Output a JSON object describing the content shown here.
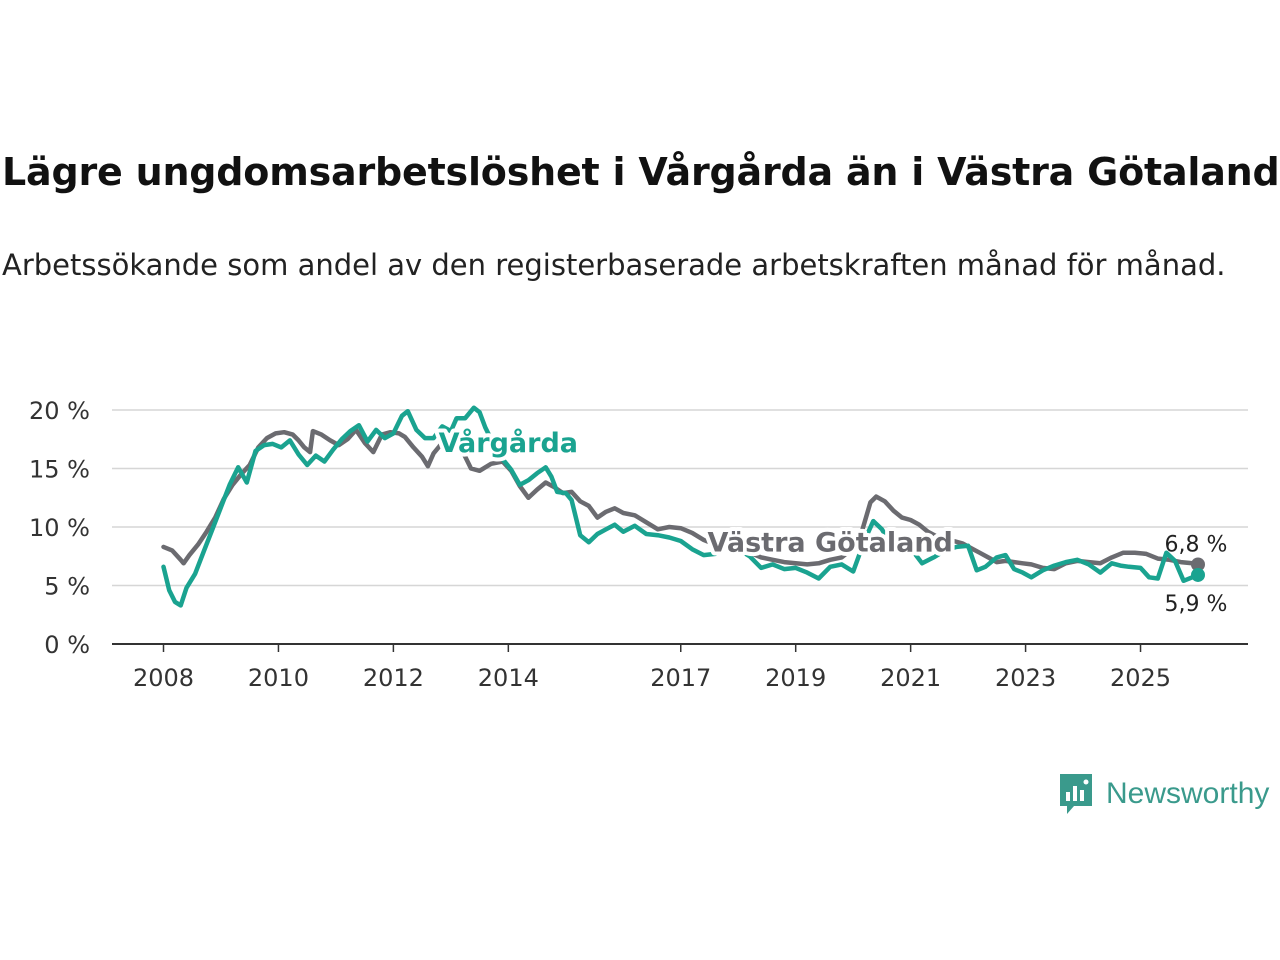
{
  "title": "Lägre ungdomsarbetslöshet i Vårgårda än i Västra Götaland",
  "subtitle": "Arbetssökande som andel av den registerbaserade arbetskraften månad för månad.",
  "brand": {
    "name": "Newsworthy",
    "icon": "newsworthy-logo-icon",
    "color": "#3a9a8c"
  },
  "chart_data": {
    "type": "line",
    "title": "Lägre ungdomsarbetslöshet i Vårgårda än i Västra Götaland",
    "xlabel": "",
    "ylabel": "",
    "xlim": [
      2008,
      2026.3
    ],
    "ylim": [
      0,
      20
    ],
    "yticks": [
      0,
      5,
      10,
      15,
      20
    ],
    "ytick_labels": [
      "0 %",
      "5 %",
      "10 %",
      "15 %",
      "20 %"
    ],
    "xticks": [
      2008,
      2010,
      2012,
      2014,
      2017,
      2019,
      2021,
      2023,
      2025
    ],
    "xtick_labels": [
      "2008",
      "2010",
      "2012",
      "2014",
      "2017",
      "2019",
      "2021",
      "2023",
      "2025"
    ],
    "grid": true,
    "series": [
      {
        "name": "Västra Götaland",
        "color": "#6b6b70",
        "end_label": "6,8 %",
        "points": [
          [
            2008.0,
            8.3
          ],
          [
            2008.15,
            8.0
          ],
          [
            2008.3,
            7.2
          ],
          [
            2008.35,
            6.9
          ],
          [
            2008.45,
            7.6
          ],
          [
            2008.6,
            8.5
          ],
          [
            2008.75,
            9.6
          ],
          [
            2008.9,
            10.8
          ],
          [
            2009.05,
            12.4
          ],
          [
            2009.2,
            13.6
          ],
          [
            2009.35,
            14.5
          ],
          [
            2009.5,
            15.3
          ],
          [
            2009.65,
            16.8
          ],
          [
            2009.8,
            17.6
          ],
          [
            2009.95,
            18.0
          ],
          [
            2010.1,
            18.1
          ],
          [
            2010.25,
            17.9
          ],
          [
            2010.35,
            17.4
          ],
          [
            2010.45,
            16.8
          ],
          [
            2010.55,
            16.4
          ],
          [
            2010.6,
            18.2
          ],
          [
            2010.75,
            17.9
          ],
          [
            2010.9,
            17.4
          ],
          [
            2011.05,
            17.0
          ],
          [
            2011.2,
            17.5
          ],
          [
            2011.35,
            18.3
          ],
          [
            2011.5,
            17.2
          ],
          [
            2011.65,
            16.4
          ],
          [
            2011.8,
            17.9
          ],
          [
            2011.95,
            18.1
          ],
          [
            2012.1,
            18.0
          ],
          [
            2012.2,
            17.7
          ],
          [
            2012.35,
            16.8
          ],
          [
            2012.5,
            16.0
          ],
          [
            2012.6,
            15.2
          ],
          [
            2012.7,
            16.3
          ],
          [
            2012.8,
            16.9
          ],
          [
            2012.9,
            17.6
          ],
          [
            2013.0,
            17.5
          ],
          [
            2013.2,
            16.5
          ],
          [
            2013.35,
            15.0
          ],
          [
            2013.5,
            14.8
          ],
          [
            2013.7,
            15.4
          ],
          [
            2013.9,
            15.6
          ],
          [
            2014.05,
            14.8
          ],
          [
            2014.2,
            13.5
          ],
          [
            2014.35,
            12.5
          ],
          [
            2014.5,
            13.2
          ],
          [
            2014.65,
            13.8
          ],
          [
            2014.8,
            13.4
          ],
          [
            2014.95,
            12.9
          ],
          [
            2015.1,
            13.0
          ],
          [
            2015.25,
            12.2
          ],
          [
            2015.4,
            11.8
          ],
          [
            2015.55,
            10.8
          ],
          [
            2015.7,
            11.3
          ],
          [
            2015.85,
            11.6
          ],
          [
            2016.0,
            11.2
          ],
          [
            2016.2,
            11.0
          ],
          [
            2016.4,
            10.4
          ],
          [
            2016.6,
            9.8
          ],
          [
            2016.8,
            10.0
          ],
          [
            2017.0,
            9.9
          ],
          [
            2017.2,
            9.5
          ],
          [
            2017.4,
            8.9
          ],
          [
            2017.6,
            8.5
          ],
          [
            2017.8,
            8.3
          ],
          [
            2018.0,
            8.0
          ],
          [
            2018.2,
            7.8
          ],
          [
            2018.4,
            7.4
          ],
          [
            2018.6,
            7.2
          ],
          [
            2018.8,
            7.0
          ],
          [
            2019.0,
            6.9
          ],
          [
            2019.2,
            6.8
          ],
          [
            2019.4,
            6.9
          ],
          [
            2019.6,
            7.2
          ],
          [
            2019.8,
            7.4
          ],
          [
            2020.0,
            8.2
          ],
          [
            2020.15,
            9.6
          ],
          [
            2020.3,
            12.1
          ],
          [
            2020.4,
            12.6
          ],
          [
            2020.55,
            12.2
          ],
          [
            2020.7,
            11.4
          ],
          [
            2020.85,
            10.8
          ],
          [
            2021.0,
            10.6
          ],
          [
            2021.15,
            10.2
          ],
          [
            2021.3,
            9.6
          ],
          [
            2021.45,
            9.2
          ],
          [
            2021.6,
            9.0
          ],
          [
            2021.75,
            8.8
          ],
          [
            2021.9,
            8.6
          ],
          [
            2022.05,
            8.2
          ],
          [
            2022.2,
            7.8
          ],
          [
            2022.35,
            7.4
          ],
          [
            2022.5,
            7.0
          ],
          [
            2022.65,
            7.1
          ],
          [
            2022.8,
            7.0
          ],
          [
            2022.95,
            6.9
          ],
          [
            2023.1,
            6.8
          ],
          [
            2023.3,
            6.5
          ],
          [
            2023.5,
            6.4
          ],
          [
            2023.7,
            6.9
          ],
          [
            2023.9,
            7.1
          ],
          [
            2024.1,
            7.0
          ],
          [
            2024.3,
            6.9
          ],
          [
            2024.5,
            7.4
          ],
          [
            2024.7,
            7.8
          ],
          [
            2024.9,
            7.8
          ],
          [
            2025.1,
            7.7
          ],
          [
            2025.3,
            7.3
          ],
          [
            2025.5,
            7.2
          ],
          [
            2025.7,
            7.0
          ],
          [
            2025.9,
            6.9
          ],
          [
            2026.0,
            6.8
          ]
        ]
      },
      {
        "name": "Vårgårda",
        "color": "#1aa390",
        "end_label": "5,9 %",
        "points": [
          [
            2008.0,
            6.6
          ],
          [
            2008.1,
            4.6
          ],
          [
            2008.2,
            3.6
          ],
          [
            2008.3,
            3.3
          ],
          [
            2008.4,
            4.8
          ],
          [
            2008.55,
            6.0
          ],
          [
            2008.7,
            7.9
          ],
          [
            2008.85,
            9.8
          ],
          [
            2009.0,
            11.7
          ],
          [
            2009.15,
            13.6
          ],
          [
            2009.3,
            15.1
          ],
          [
            2009.45,
            13.8
          ],
          [
            2009.6,
            16.5
          ],
          [
            2009.75,
            17.0
          ],
          [
            2009.9,
            17.1
          ],
          [
            2010.05,
            16.8
          ],
          [
            2010.2,
            17.4
          ],
          [
            2010.35,
            16.2
          ],
          [
            2010.5,
            15.3
          ],
          [
            2010.65,
            16.1
          ],
          [
            2010.8,
            15.6
          ],
          [
            2010.95,
            16.6
          ],
          [
            2011.1,
            17.5
          ],
          [
            2011.25,
            18.2
          ],
          [
            2011.4,
            18.7
          ],
          [
            2011.55,
            17.3
          ],
          [
            2011.7,
            18.3
          ],
          [
            2011.85,
            17.6
          ],
          [
            2012.0,
            18.0
          ],
          [
            2012.15,
            19.5
          ],
          [
            2012.25,
            19.9
          ],
          [
            2012.4,
            18.3
          ],
          [
            2012.55,
            17.6
          ],
          [
            2012.7,
            17.6
          ],
          [
            2012.85,
            18.6
          ],
          [
            2013.0,
            18.2
          ],
          [
            2013.1,
            19.3
          ],
          [
            2013.25,
            19.3
          ],
          [
            2013.4,
            20.2
          ],
          [
            2013.5,
            19.8
          ],
          [
            2013.6,
            18.5
          ],
          [
            2013.75,
            17.0
          ],
          [
            2013.9,
            15.8
          ],
          [
            2014.05,
            14.9
          ],
          [
            2014.2,
            13.6
          ],
          [
            2014.35,
            14.0
          ],
          [
            2014.5,
            14.6
          ],
          [
            2014.65,
            15.1
          ],
          [
            2014.75,
            14.3
          ],
          [
            2014.85,
            13.0
          ],
          [
            2015.0,
            12.9
          ],
          [
            2015.1,
            12.3
          ],
          [
            2015.25,
            9.3
          ],
          [
            2015.4,
            8.7
          ],
          [
            2015.55,
            9.4
          ],
          [
            2015.7,
            9.8
          ],
          [
            2015.85,
            10.2
          ],
          [
            2016.0,
            9.6
          ],
          [
            2016.2,
            10.1
          ],
          [
            2016.4,
            9.4
          ],
          [
            2016.6,
            9.3
          ],
          [
            2016.8,
            9.1
          ],
          [
            2017.0,
            8.8
          ],
          [
            2017.2,
            8.1
          ],
          [
            2017.4,
            7.6
          ],
          [
            2017.6,
            7.7
          ],
          [
            2017.8,
            8.4
          ],
          [
            2018.0,
            8.1
          ],
          [
            2018.2,
            7.5
          ],
          [
            2018.4,
            6.5
          ],
          [
            2018.6,
            6.8
          ],
          [
            2018.8,
            6.4
          ],
          [
            2019.0,
            6.5
          ],
          [
            2019.2,
            6.1
          ],
          [
            2019.4,
            5.6
          ],
          [
            2019.6,
            6.6
          ],
          [
            2019.8,
            6.8
          ],
          [
            2020.0,
            6.2
          ],
          [
            2020.2,
            8.9
          ],
          [
            2020.35,
            10.5
          ],
          [
            2020.5,
            9.8
          ],
          [
            2020.65,
            8.6
          ],
          [
            2020.8,
            8.1
          ],
          [
            2021.0,
            8.2
          ],
          [
            2021.2,
            6.9
          ],
          [
            2021.4,
            7.4
          ],
          [
            2021.6,
            8.0
          ],
          [
            2021.8,
            8.3
          ],
          [
            2022.0,
            8.4
          ],
          [
            2022.15,
            6.3
          ],
          [
            2022.3,
            6.6
          ],
          [
            2022.5,
            7.4
          ],
          [
            2022.65,
            7.6
          ],
          [
            2022.8,
            6.4
          ],
          [
            2022.95,
            6.1
          ],
          [
            2023.1,
            5.7
          ],
          [
            2023.3,
            6.3
          ],
          [
            2023.5,
            6.7
          ],
          [
            2023.7,
            7.0
          ],
          [
            2023.9,
            7.2
          ],
          [
            2024.1,
            6.8
          ],
          [
            2024.3,
            6.1
          ],
          [
            2024.5,
            6.9
          ],
          [
            2024.65,
            6.7
          ],
          [
            2024.8,
            6.6
          ],
          [
            2025.0,
            6.5
          ],
          [
            2025.15,
            5.7
          ],
          [
            2025.3,
            5.6
          ],
          [
            2025.45,
            7.8
          ],
          [
            2025.6,
            7.1
          ],
          [
            2025.75,
            5.4
          ],
          [
            2025.9,
            5.7
          ],
          [
            2026.0,
            5.9
          ]
        ]
      }
    ],
    "annotations": [
      {
        "text": "Vårgårda",
        "series": "Vårgårda",
        "x": 2014.0,
        "y": 16.4
      },
      {
        "text": "Västra Götaland",
        "series": "Västra Götaland",
        "x": 2019.6,
        "y": 7.9
      }
    ]
  }
}
